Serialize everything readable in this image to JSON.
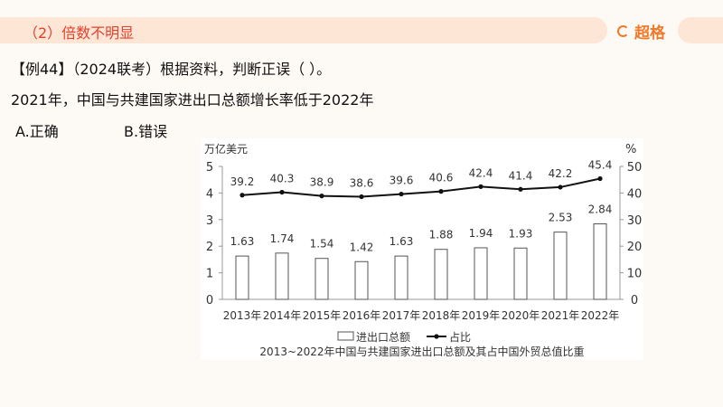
{
  "header": {
    "section": "（2）倍数不明显",
    "logo": "超格",
    "accent": "#e8402a",
    "logo_color": "#f07a2a"
  },
  "question": {
    "title": "【例44】（2024联考）根据资料，判断正误（ ）。",
    "statement": "2021年，中国与共建国家进出口总额增长率低于2022年",
    "option_a": "A.正确",
    "option_b": "B.错误"
  },
  "chart_data": {
    "type": "bar+line",
    "title": "2013~2022年中国与共建国家进出口总额及其占中国外贸总值比重",
    "categories": [
      "2013年",
      "2014年",
      "2015年",
      "2016年",
      "2017年",
      "2018年",
      "2019年",
      "2020年",
      "2021年",
      "2022年"
    ],
    "ylabel_left": "万亿美元",
    "ylabel_right": "%",
    "ylim_left": [
      0,
      5
    ],
    "yticks_left": [
      "0",
      "1",
      "2",
      "3",
      "4",
      "5"
    ],
    "ylim_right": [
      0,
      50
    ],
    "yticks_right": [
      "0",
      "10",
      "20",
      "30",
      "40",
      "50"
    ],
    "series": [
      {
        "name": "进出口总额",
        "type": "bar",
        "axis": "left",
        "values": [
          1.63,
          1.74,
          1.54,
          1.42,
          1.63,
          1.88,
          1.94,
          1.93,
          2.53,
          2.84
        ]
      },
      {
        "name": "占比",
        "type": "line",
        "axis": "right",
        "values": [
          39.2,
          40.3,
          38.9,
          38.6,
          39.6,
          40.6,
          42.4,
          41.4,
          42.2,
          45.4
        ]
      }
    ],
    "legend": "bottom",
    "grid": false
  }
}
